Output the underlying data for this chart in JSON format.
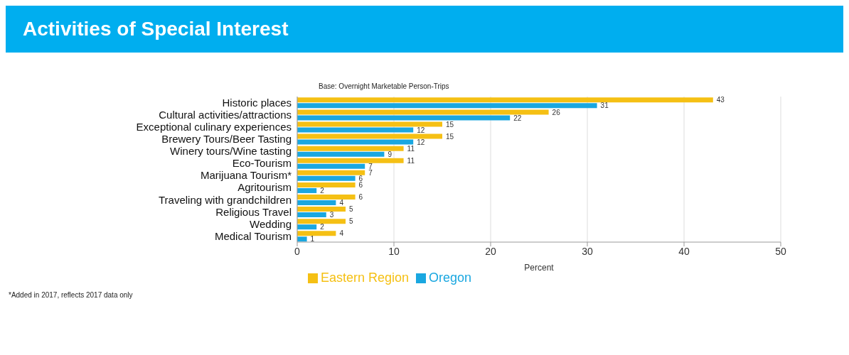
{
  "chart_data": {
    "type": "bar",
    "orientation": "horizontal",
    "title": "Activities of Special Interest",
    "subtitle": "Base: Overnight Marketable Person-Trips",
    "xlabel": "Percent",
    "annotations": [
      "*Added in 2017, reflects 2017 data only"
    ],
    "categories": [
      "Historic places",
      "Cultural activities/attractions",
      "Exceptional culinary experiences",
      "Brewery Tours/Beer Tasting",
      "Winery tours/Wine tasting",
      "Eco-Tourism",
      "Marijuana Tourism*",
      "Agritourism",
      "Traveling with grandchildren",
      "Religious Travel",
      "Wedding",
      "Medical Tourism"
    ],
    "series": [
      {
        "name": "Eastern Region",
        "color": "#f5c014",
        "values": [
          43,
          26,
          15,
          15,
          11,
          11,
          7,
          6,
          6,
          5,
          5,
          4
        ]
      },
      {
        "name": "Oregon",
        "color": "#1aa7e0",
        "values": [
          31,
          22,
          12,
          12,
          9,
          7,
          6,
          2,
          4,
          3,
          2,
          1
        ]
      }
    ],
    "xlim": [
      0,
      50
    ],
    "xticks": [
      0,
      10,
      20,
      30,
      40,
      50
    ],
    "grid": "x",
    "legend": "bottom",
    "data_labels": true
  }
}
